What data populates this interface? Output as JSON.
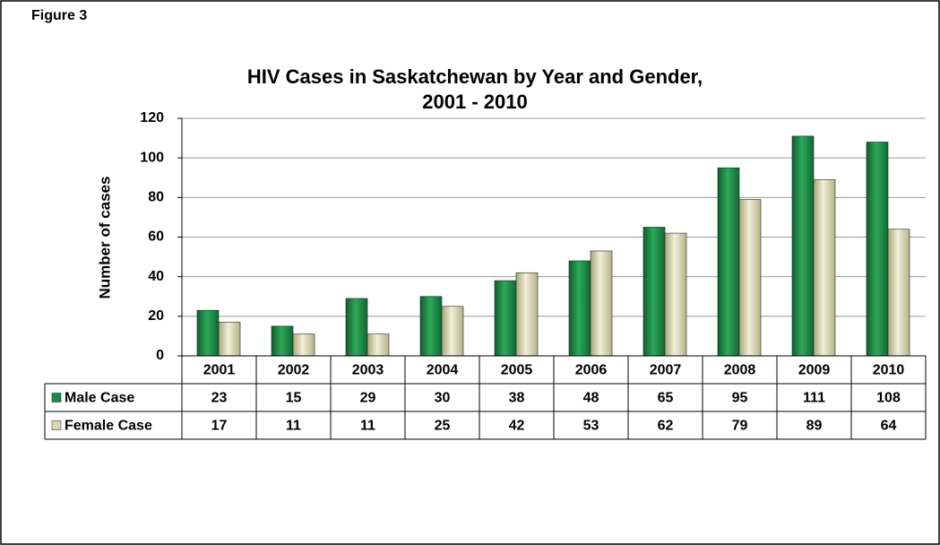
{
  "figure_label": "Figure 3",
  "chart_data": {
    "type": "bar",
    "title_lines": [
      "HIV Cases in Saskatchewan by Year and Gender,",
      "2001 - 2010"
    ],
    "y_label": "Number of cases",
    "categories": [
      "2001",
      "2002",
      "2003",
      "2004",
      "2005",
      "2006",
      "2007",
      "2008",
      "2009",
      "2010"
    ],
    "series": [
      {
        "name": "Male Case",
        "color": "#1a8a45",
        "values": [
          23,
          15,
          29,
          30,
          38,
          48,
          65,
          95,
          111,
          108
        ]
      },
      {
        "name": "Female Case",
        "color": "#dcd9b4",
        "values": [
          17,
          11,
          11,
          25,
          42,
          53,
          62,
          79,
          89,
          64
        ]
      }
    ],
    "ylim": [
      0,
      120
    ],
    "yticks": [
      0,
      20,
      40,
      60,
      80,
      100,
      120
    ],
    "grid": true,
    "data_table": true
  }
}
